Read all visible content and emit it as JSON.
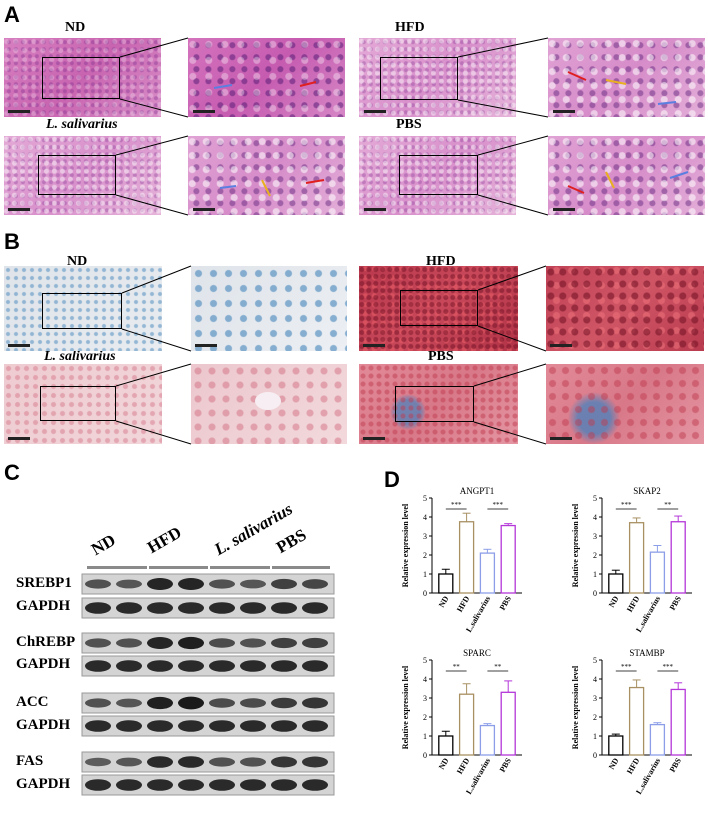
{
  "panels": {
    "A": "A",
    "B": "B",
    "C": "C",
    "D": "D"
  },
  "histology": {
    "nd": "ND",
    "hfd": "HFD",
    "lsal": "L. salivarius",
    "pbs": "PBS"
  },
  "western": {
    "lanes": [
      "ND",
      "HFD",
      "L. salivarius",
      "PBS"
    ],
    "rows": [
      "SREBP1",
      "GAPDH",
      "ChREBP",
      "GAPDH",
      "ACC",
      "GAPDH",
      "FAS",
      "GAPDH"
    ]
  },
  "colors": {
    "ND": "#000000",
    "HFD": "#a89062",
    "L.salivarius": "#8c9ee8",
    "PBS": "#b437d8"
  },
  "chart_data": [
    {
      "type": "bar",
      "title": "ANGPT1",
      "categories": [
        "ND",
        "HFD",
        "L.salivarius",
        "PBS"
      ],
      "values": [
        1.0,
        3.75,
        2.1,
        3.55
      ],
      "errors": [
        0.25,
        0.45,
        0.2,
        0.1
      ],
      "ylabel": "Relative expression level",
      "ylim": [
        0,
        5
      ],
      "yticks": [
        "0",
        "1",
        "2",
        "3",
        "4",
        "5"
      ],
      "significance": [
        "***",
        "***"
      ]
    },
    {
      "type": "bar",
      "title": "SKAP2",
      "categories": [
        "ND",
        "HFD",
        "L.salivarius",
        "PBS"
      ],
      "values": [
        1.0,
        3.7,
        2.15,
        3.75
      ],
      "errors": [
        0.2,
        0.25,
        0.35,
        0.3
      ],
      "ylabel": "Relative expression level",
      "ylim": [
        0,
        5
      ],
      "yticks": [
        "0",
        "1",
        "2",
        "3",
        "4",
        "5"
      ],
      "significance": [
        "***",
        "**"
      ]
    },
    {
      "type": "bar",
      "title": "SPARC",
      "categories": [
        "ND",
        "HFD",
        "L.salivarius",
        "PBS"
      ],
      "values": [
        1.0,
        3.2,
        1.55,
        3.3
      ],
      "errors": [
        0.25,
        0.55,
        0.1,
        0.6
      ],
      "ylabel": "Relative expression level",
      "ylim": [
        0,
        5
      ],
      "yticks": [
        "0",
        "1",
        "2",
        "3",
        "4",
        "5"
      ],
      "significance": [
        "**",
        "**"
      ]
    },
    {
      "type": "bar",
      "title": "STAMBP",
      "categories": [
        "ND",
        "HFD",
        "L.salivarius",
        "PBS"
      ],
      "values": [
        1.0,
        3.55,
        1.6,
        3.45
      ],
      "errors": [
        0.1,
        0.4,
        0.1,
        0.35
      ],
      "ylabel": "Relative expression level",
      "ylim": [
        0,
        5
      ],
      "yticks": [
        "0",
        "1",
        "2",
        "3",
        "4",
        "5"
      ],
      "significance": [
        "***",
        "***"
      ]
    }
  ]
}
